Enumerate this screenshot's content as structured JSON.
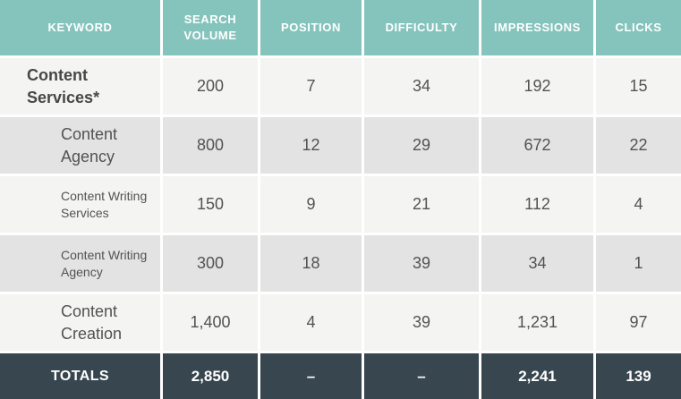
{
  "table": {
    "columns": [
      {
        "label": "KEYWORD"
      },
      {
        "label": "SEARCH VOLUME"
      },
      {
        "label": "POSITION"
      },
      {
        "label": "DIFFICULTY"
      },
      {
        "label": "IMPRESSIONS"
      },
      {
        "label": "CLICKS"
      }
    ],
    "rows": [
      {
        "keyword": "Content Services*",
        "search_volume": "200",
        "position": "7",
        "difficulty": "34",
        "impressions": "192",
        "clicks": "15"
      },
      {
        "keyword": "Content Agency",
        "search_volume": "800",
        "position": "12",
        "difficulty": "29",
        "impressions": "672",
        "clicks": "22"
      },
      {
        "keyword": "Content Writing Services",
        "search_volume": "150",
        "position": "9",
        "difficulty": "21",
        "impressions": "112",
        "clicks": "4"
      },
      {
        "keyword": "Content Writing Agency",
        "search_volume": "300",
        "position": "18",
        "difficulty": "39",
        "impressions": "34",
        "clicks": "1"
      },
      {
        "keyword": "Content Creation",
        "search_volume": "1,400",
        "position": "4",
        "difficulty": "39",
        "impressions": "1,231",
        "clicks": "97"
      }
    ],
    "totals": {
      "label": "TOTALS",
      "search_volume": "2,850",
      "position": "–",
      "difficulty": "–",
      "impressions": "2,241",
      "clicks": "139"
    }
  },
  "colors": {
    "header_bg": "#85c4bd",
    "row_light_bg": "#f4f4f3",
    "row_dark_bg": "#e3e3e4",
    "totals_bg": "#38464f",
    "header_text": "#ffffff",
    "body_text": "#525252"
  }
}
